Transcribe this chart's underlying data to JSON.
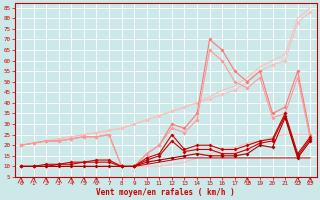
{
  "background_color": "#cce8e8",
  "grid_color": "#ffffff",
  "x_ticks": [
    0,
    1,
    2,
    3,
    4,
    5,
    6,
    7,
    8,
    9,
    10,
    11,
    12,
    13,
    14,
    15,
    16,
    17,
    18,
    19,
    20,
    21,
    22,
    23
  ],
  "ylim": [
    5,
    87
  ],
  "yticks": [
    5,
    10,
    15,
    20,
    25,
    30,
    35,
    40,
    45,
    50,
    55,
    60,
    65,
    70,
    75,
    80,
    85
  ],
  "xlabel": "Vent moyen/en rafales ( km/h )",
  "xlabel_color": "#cc0000",
  "tick_color": "#cc0000",
  "series": [
    {
      "data": [
        10,
        10,
        10,
        10,
        10,
        10,
        10,
        10,
        10,
        10,
        10,
        10,
        11,
        12,
        14,
        16,
        18,
        19,
        21,
        22,
        24,
        25,
        25,
        25
      ],
      "color": "#ffbbbb",
      "marker": "None",
      "ms": 0,
      "lw": 0.7
    },
    {
      "data": [
        20,
        21,
        22,
        23,
        24,
        25,
        26,
        27,
        28,
        30,
        32,
        34,
        36,
        38,
        40,
        42,
        44,
        46,
        50,
        55,
        58,
        60,
        78,
        83
      ],
      "color": "#ffbbbb",
      "marker": "D",
      "ms": 2,
      "lw": 0.7
    },
    {
      "data": [
        20,
        21,
        22,
        23,
        24,
        25,
        26,
        27,
        28,
        30,
        32,
        34,
        36,
        38,
        40,
        43,
        46,
        48,
        52,
        57,
        60,
        63,
        80,
        85
      ],
      "color": "#ffbbbb",
      "marker": "None",
      "ms": 0,
      "lw": 0.7
    },
    {
      "data": [
        20,
        21,
        22,
        22,
        23,
        24,
        24,
        25,
        10,
        10,
        16,
        20,
        30,
        28,
        35,
        70,
        65,
        55,
        50,
        55,
        35,
        38,
        55,
        25
      ],
      "color": "#ff7777",
      "marker": "D",
      "ms": 2,
      "lw": 0.8
    },
    {
      "data": [
        20,
        21,
        22,
        22,
        23,
        24,
        24,
        25,
        10,
        10,
        16,
        20,
        28,
        26,
        32,
        65,
        60,
        50,
        47,
        52,
        33,
        35,
        52,
        23
      ],
      "color": "#ff9999",
      "marker": "D",
      "ms": 2,
      "lw": 0.8
    },
    {
      "data": [
        10,
        10,
        11,
        11,
        12,
        12,
        13,
        13,
        10,
        10,
        14,
        16,
        25,
        18,
        20,
        20,
        18,
        18,
        20,
        22,
        23,
        35,
        16,
        24
      ],
      "color": "#cc0000",
      "marker": "D",
      "ms": 2,
      "lw": 0.8
    },
    {
      "data": [
        10,
        10,
        10,
        11,
        11,
        12,
        12,
        12,
        10,
        10,
        13,
        15,
        22,
        17,
        18,
        18,
        16,
        16,
        18,
        21,
        22,
        34,
        15,
        23
      ],
      "color": "#cc0000",
      "marker": "D",
      "ms": 2,
      "lw": 0.8
    },
    {
      "data": [
        10,
        10,
        10,
        10,
        10,
        10,
        10,
        10,
        10,
        10,
        12,
        13,
        14,
        15,
        16,
        15,
        15,
        15,
        16,
        20,
        19,
        33,
        14,
        22
      ],
      "color": "#aa0000",
      "marker": "D",
      "ms": 2,
      "lw": 0.8
    },
    {
      "data": [
        10,
        10,
        10,
        10,
        10,
        10,
        10,
        10,
        10,
        10,
        11,
        12,
        13,
        14,
        14,
        14,
        14,
        14,
        14,
        14,
        14,
        14,
        14,
        14
      ],
      "color": "#cc0000",
      "marker": "None",
      "ms": 0,
      "lw": 0.7
    }
  ],
  "wind_dirs": [
    0,
    0,
    0,
    0,
    0,
    0,
    0,
    135,
    180,
    180,
    180,
    180,
    180,
    180,
    180,
    180,
    180,
    180,
    0,
    135,
    135,
    180,
    0,
    0
  ]
}
